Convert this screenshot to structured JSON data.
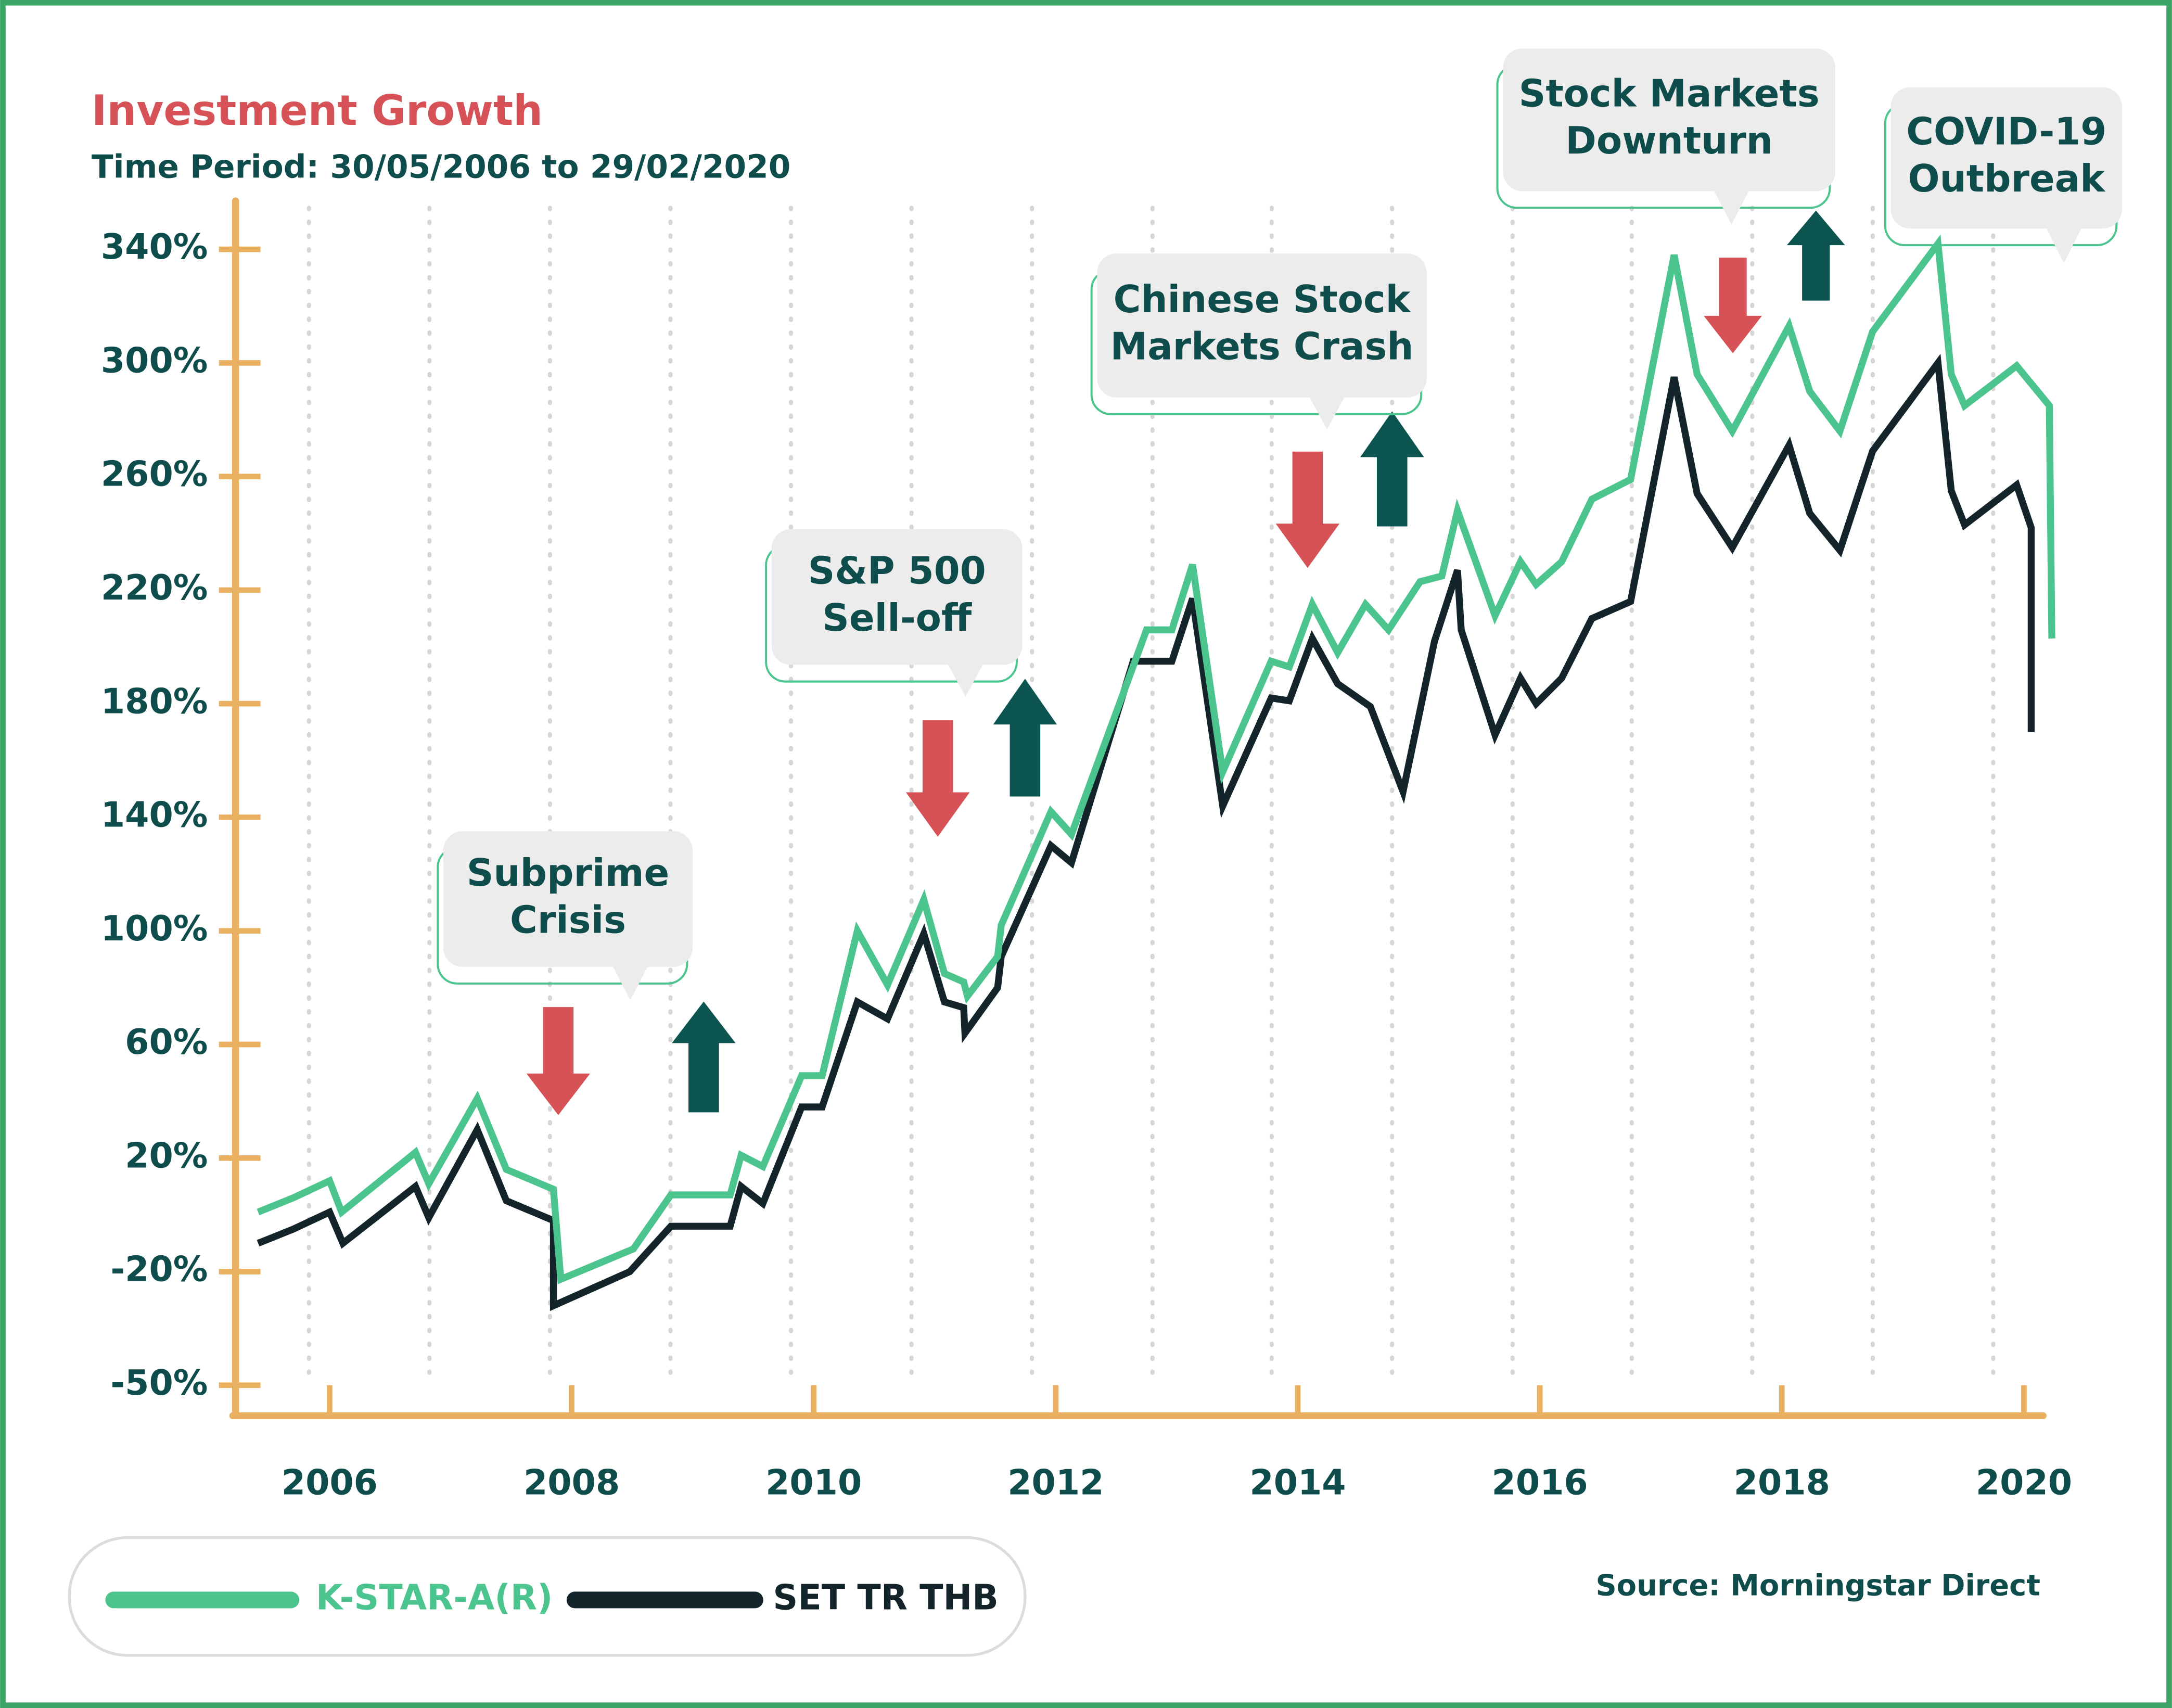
{
  "chart_data": {
    "type": "line",
    "title": "Investment Growth",
    "subtitle": "Time Period: 30/05/2006 to 29/02/2020",
    "source": "Source: Morningstar Direct",
    "xlim": [
      2005.2,
      2020.25
    ],
    "xticks": [
      2006,
      2008,
      2010,
      2012,
      2014,
      2016,
      2018,
      2020
    ],
    "ylim": [
      -50,
      340
    ],
    "yticks": [
      {
        "value": 340,
        "label": "340%"
      },
      {
        "value": 300,
        "label": "300%"
      },
      {
        "value": 260,
        "label": "260%"
      },
      {
        "value": 220,
        "label": "220%"
      },
      {
        "value": 180,
        "label": "180%"
      },
      {
        "value": 140,
        "label": "140%"
      },
      {
        "value": 100,
        "label": "100%"
      },
      {
        "value": 60,
        "label": "60%"
      },
      {
        "value": 20,
        "label": "20%"
      },
      {
        "value": -20,
        "label": "-20%"
      },
      {
        "value": -50,
        "label": "-50%"
      }
    ],
    "series": [
      {
        "name": "K-STAR-A(R)",
        "color": "#4cc48d",
        "x": [
          2005.41,
          2005.7,
          2006.0,
          2006.1,
          2006.71,
          2006.82,
          2007.22,
          2007.46,
          2007.85,
          2007.91,
          2008.51,
          2008.82,
          2009.31,
          2009.4,
          2009.58,
          2009.9,
          2010.07,
          2010.36,
          2010.61,
          2010.91,
          2011.08,
          2011.24,
          2011.27,
          2011.52,
          2011.55,
          2011.96,
          2012.13,
          2012.75,
          2012.96,
          2013.13,
          2013.38,
          2013.78,
          2013.93,
          2014.12,
          2014.33,
          2014.56,
          2014.75,
          2015.01,
          2015.19,
          2015.32,
          2015.63,
          2015.84,
          2015.97,
          2016.18,
          2016.43,
          2016.75,
          2017.11,
          2017.3,
          2017.59,
          2018.06,
          2018.23,
          2018.48,
          2018.75,
          2019.29,
          2019.4,
          2019.51,
          2019.94,
          2020.21,
          2020.23
        ],
        "values": [
          1,
          6,
          12,
          1,
          22,
          11,
          41,
          16,
          9,
          -22,
          -12,
          7,
          7,
          21,
          17,
          49,
          49,
          100,
          81,
          111,
          85,
          82,
          77,
          91,
          102,
          142,
          134,
          206,
          206,
          229,
          156,
          195,
          193,
          215,
          198,
          215,
          206,
          223,
          225,
          248,
          211,
          230,
          222,
          230,
          252,
          259,
          338,
          296,
          276,
          313,
          290,
          276,
          311,
          342,
          296,
          285,
          299,
          285,
          203
        ]
      },
      {
        "name": "SET TR THB",
        "color": "#13252b",
        "x": [
          2005.41,
          2005.7,
          2006.0,
          2006.11,
          2006.71,
          2006.82,
          2007.22,
          2007.46,
          2007.85,
          2007.85,
          2008.48,
          2008.82,
          2009.31,
          2009.4,
          2009.58,
          2009.9,
          2010.07,
          2010.36,
          2010.61,
          2010.91,
          2011.08,
          2011.24,
          2011.25,
          2011.52,
          2011.55,
          2011.96,
          2012.13,
          2012.64,
          2012.96,
          2013.13,
          2013.38,
          2013.78,
          2013.93,
          2014.12,
          2014.33,
          2014.6,
          2014.87,
          2015.13,
          2015.32,
          2015.35,
          2015.63,
          2015.84,
          2015.97,
          2016.18,
          2016.43,
          2016.75,
          2017.11,
          2017.3,
          2017.59,
          2018.06,
          2018.23,
          2018.48,
          2018.75,
          2019.29,
          2019.4,
          2019.51,
          2019.94,
          2020.06,
          2020.06
        ],
        "values": [
          -10,
          -5,
          1,
          -10,
          10,
          -1,
          30,
          5,
          -2,
          -29,
          -20,
          -4,
          -4,
          10,
          4,
          38,
          38,
          75,
          69,
          99,
          75,
          73,
          64,
          80,
          91,
          130,
          124,
          195,
          195,
          217,
          144,
          182,
          181,
          203,
          187,
          179,
          149,
          202,
          227,
          206,
          169,
          189,
          180,
          189,
          210,
          216,
          295,
          254,
          235,
          271,
          247,
          234,
          269,
          300,
          255,
          243,
          257,
          242,
          170
        ]
      }
    ],
    "annotations": [
      {
        "lines": [
          "Subprime",
          "Crisis"
        ]
      },
      {
        "lines": [
          "S&P 500",
          "Sell-off"
        ]
      },
      {
        "lines": [
          "Chinese Stock",
          "Markets Crash"
        ]
      },
      {
        "lines": [
          "Stock Markets",
          "Downturn"
        ]
      },
      {
        "lines": [
          "COVID-19",
          "Outbreak"
        ]
      }
    ]
  }
}
